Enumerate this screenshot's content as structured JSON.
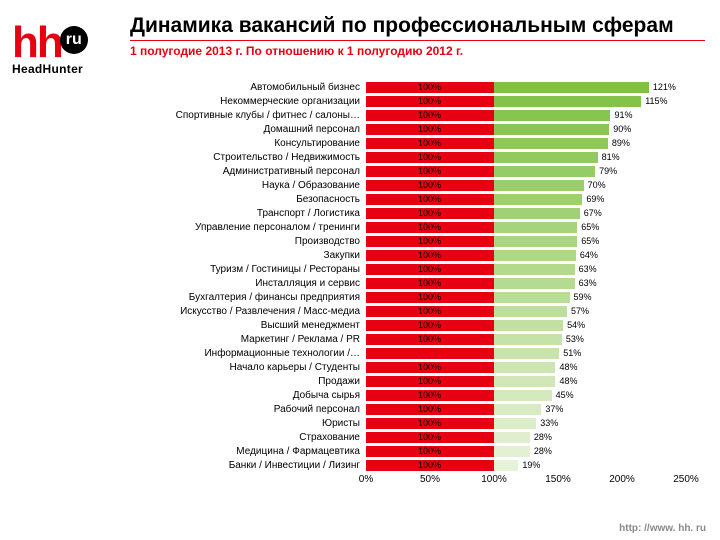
{
  "logo": {
    "main": "hh",
    "badge": "ru",
    "sub": "HeadHunter"
  },
  "title": "Динамика вакансий по профессиональным сферам",
  "subtitle": "1 полугодие 2013 г. По отношению к 1 полугодию 2012 г.",
  "footer": "http: //www. hh. ru",
  "chart": {
    "type": "bar",
    "xmax": 250,
    "xticks": [
      0,
      50,
      100,
      150,
      200,
      250
    ],
    "base_color": "#e60012",
    "bar_colors_gradient": [
      "#7fc143",
      "#e8f2da"
    ],
    "highlight_index": 19,
    "base_label": "100%",
    "rows": [
      {
        "cat": "Автомобильный бизнес",
        "val": 121
      },
      {
        "cat": "Некоммерческие организации",
        "val": 115
      },
      {
        "cat": "Спортивные клубы / фитнес / салоны…",
        "val": 91
      },
      {
        "cat": "Домашний персонал",
        "val": 90
      },
      {
        "cat": "Консультирование",
        "val": 89
      },
      {
        "cat": "Строительство / Недвижимость",
        "val": 81
      },
      {
        "cat": "Административный персонал",
        "val": 79
      },
      {
        "cat": "Наука / Образование",
        "val": 70
      },
      {
        "cat": "Безопасность",
        "val": 69
      },
      {
        "cat": "Транспорт / Логистика",
        "val": 67
      },
      {
        "cat": "Управление персоналом / тренинги",
        "val": 65
      },
      {
        "cat": "Производство",
        "val": 65
      },
      {
        "cat": "Закупки",
        "val": 64
      },
      {
        "cat": "Туризм / Гостиницы / Рестораны",
        "val": 63
      },
      {
        "cat": "Инсталляция и сервис",
        "val": 63
      },
      {
        "cat": "Бухгалтерия / финансы предприятия",
        "val": 59
      },
      {
        "cat": "Искусство / Развлечения / Масс-медиа",
        "val": 57
      },
      {
        "cat": "Высший менеджмент",
        "val": 54
      },
      {
        "cat": "Маркетинг / Реклама / PR",
        "val": 53
      },
      {
        "cat": "Информационные технологии /…",
        "val": 51
      },
      {
        "cat": "Начало карьеры / Студенты",
        "val": 48
      },
      {
        "cat": "Продажи",
        "val": 48
      },
      {
        "cat": "Добыча сырья",
        "val": 45
      },
      {
        "cat": "Рабочий персонал",
        "val": 37
      },
      {
        "cat": "Юристы",
        "val": 33
      },
      {
        "cat": "Страхование",
        "val": 28
      },
      {
        "cat": "Медицина / Фармацевтика",
        "val": 28
      },
      {
        "cat": "Банки / Инвестиции / Лизинг",
        "val": 19
      }
    ]
  }
}
